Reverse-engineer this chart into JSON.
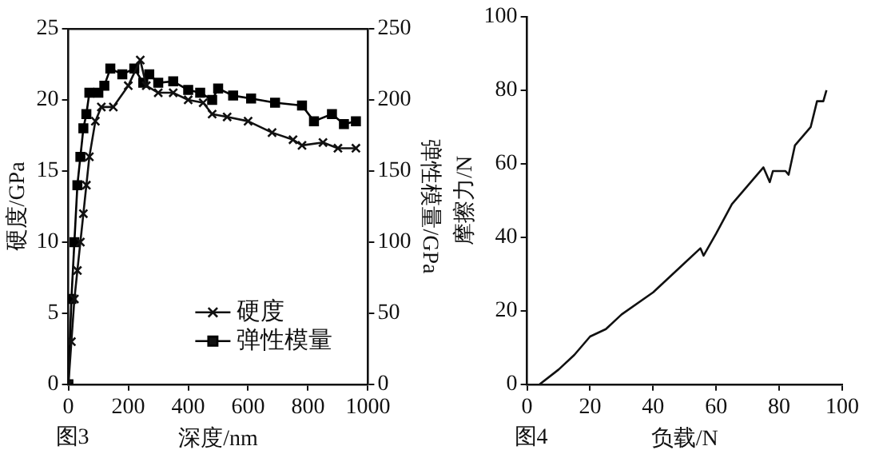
{
  "chart_data": [
    {
      "type": "line",
      "xlabel": "深度/nm",
      "ylabel": "硬度/GPa",
      "y2label": "弹性模量/GPa",
      "annotations": [
        "图3"
      ],
      "xlim": [
        0,
        1000
      ],
      "xticks": [
        0,
        200,
        400,
        600,
        800,
        1000
      ],
      "ylim": [
        0,
        25
      ],
      "yticks": [
        0,
        5,
        10,
        15,
        20,
        25
      ],
      "y2lim": [
        0,
        250
      ],
      "y2ticks": [
        0,
        50,
        100,
        150,
        200,
        250
      ],
      "legend": "bottom right",
      "grid": false,
      "line_style": "solid",
      "series": [
        {
          "name": "硬度",
          "color": "#111111",
          "marker": "cross",
          "x": [
            0,
            10,
            20,
            30,
            40,
            50,
            60,
            70,
            90,
            110,
            150,
            200,
            240,
            260,
            300,
            350,
            400,
            450,
            480,
            530,
            600,
            680,
            750,
            780,
            850,
            900,
            960
          ],
          "values": [
            0,
            3,
            6,
            8,
            10,
            12,
            14,
            16,
            18.5,
            19.5,
            19.5,
            21,
            22.8,
            21,
            20.5,
            20.5,
            20,
            19.8,
            19,
            18.8,
            18.5,
            17.7,
            17.2,
            16.8,
            17,
            16.6,
            16.6
          ]
        },
        {
          "name": "弹性模量",
          "color": "#000000",
          "marker": "square",
          "axis": "y2",
          "x": [
            0,
            10,
            20,
            30,
            40,
            50,
            60,
            70,
            100,
            120,
            140,
            180,
            220,
            250,
            270,
            300,
            350,
            400,
            440,
            480,
            500,
            550,
            610,
            690,
            780,
            820,
            880,
            920,
            960
          ],
          "values": [
            0,
            60,
            100,
            140,
            160,
            180,
            190,
            205,
            205,
            210,
            222,
            218,
            222,
            212,
            218,
            212,
            213,
            207,
            205,
            200,
            208,
            203,
            201,
            198,
            196,
            185,
            190,
            183,
            185
          ]
        }
      ]
    },
    {
      "type": "line",
      "xlabel": "负载/N",
      "ylabel": "摩擦力/N",
      "annotations": [
        "图4"
      ],
      "xlim": [
        0,
        100
      ],
      "xticks": [
        0,
        20,
        40,
        60,
        80,
        100
      ],
      "ylim": [
        0,
        100
      ],
      "yticks": [
        0,
        20,
        40,
        60,
        80,
        100
      ],
      "grid": false,
      "line_style": "solid",
      "marker": "none",
      "series": [
        {
          "color": "#111111",
          "x": [
            4,
            10,
            15,
            20,
            25,
            30,
            40,
            50,
            55,
            56,
            60,
            65,
            70,
            75,
            77,
            78,
            82,
            83,
            85,
            90,
            92,
            94,
            95
          ],
          "values": [
            0,
            4,
            8,
            13,
            15,
            19,
            25,
            33,
            37,
            35,
            41,
            49,
            54,
            59,
            55,
            58,
            58,
            57,
            65,
            70,
            77,
            77,
            80
          ]
        }
      ]
    }
  ]
}
